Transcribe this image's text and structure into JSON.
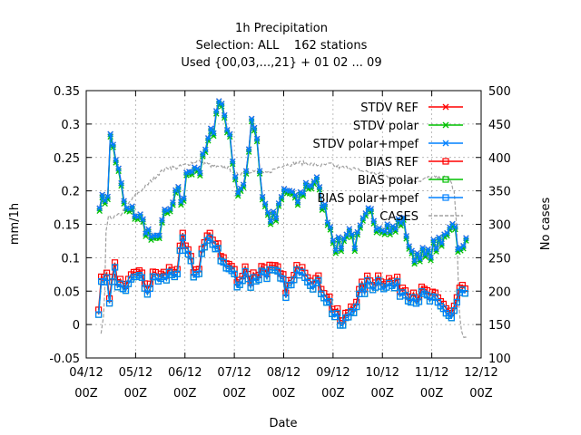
{
  "chart_data": {
    "type": "line",
    "title": [
      "1h Precipitation",
      "Selection: ALL    162 stations",
      "Used {00,03,...,21} + 01 02 ... 09"
    ],
    "xlabel": "Date",
    "ylabel": "mm/1h",
    "y2label": "No cases",
    "ylim": [
      -0.05,
      0.35
    ],
    "y2lim": [
      100,
      500
    ],
    "xlim": [
      0,
      8
    ],
    "yticks": [
      "-0.05",
      "0",
      "0.05",
      "0.1",
      "0.15",
      "0.2",
      "0.25",
      "0.3",
      "0.35"
    ],
    "y2ticks": [
      "100",
      "150",
      "200",
      "250",
      "300",
      "350",
      "400",
      "450",
      "500"
    ],
    "xticks": [
      {
        "date": "04/12",
        "hour": "00Z"
      },
      {
        "date": "05/12",
        "hour": "00Z"
      },
      {
        "date": "06/12",
        "hour": "00Z"
      },
      {
        "date": "07/12",
        "hour": "00Z"
      },
      {
        "date": "08/12",
        "hour": "00Z"
      },
      {
        "date": "09/12",
        "hour": "00Z"
      },
      {
        "date": "10/12",
        "hour": "00Z"
      },
      {
        "date": "11/12",
        "hour": "00Z"
      },
      {
        "date": "12/12",
        "hour": "00Z"
      }
    ],
    "grid": true,
    "legend": "top-right",
    "series": [
      {
        "name": "STDV REF",
        "color": "#ff0000",
        "marker": "x"
      },
      {
        "name": "STDV polar",
        "color": "#00c000",
        "marker": "x"
      },
      {
        "name": "STDV polar+mpef",
        "color": "#0080ff",
        "marker": "x"
      },
      {
        "name": "BIAS REF",
        "color": "#ff0000",
        "marker": "square"
      },
      {
        "name": "BIAS polar",
        "color": "#00c000",
        "marker": "square"
      },
      {
        "name": "BIAS polar+mpef",
        "color": "#0080ff",
        "marker": "square"
      },
      {
        "name": "CASES",
        "color": "#a0a0a0",
        "marker": "none"
      }
    ],
    "stdv_keypoints": [
      [
        0.27,
        0.185
      ],
      [
        0.35,
        0.185
      ],
      [
        0.45,
        0.2
      ],
      [
        0.5,
        0.3
      ],
      [
        0.55,
        0.265
      ],
      [
        0.6,
        0.25
      ],
      [
        0.7,
        0.21
      ],
      [
        0.8,
        0.17
      ],
      [
        0.95,
        0.17
      ],
      [
        1.1,
        0.16
      ],
      [
        1.25,
        0.14
      ],
      [
        1.4,
        0.12
      ],
      [
        1.55,
        0.16
      ],
      [
        1.7,
        0.17
      ],
      [
        1.85,
        0.2
      ],
      [
        1.95,
        0.18
      ],
      [
        2.05,
        0.23
      ],
      [
        2.2,
        0.24
      ],
      [
        2.3,
        0.23
      ],
      [
        2.45,
        0.27
      ],
      [
        2.6,
        0.3
      ],
      [
        2.65,
        0.335
      ],
      [
        2.75,
        0.33
      ],
      [
        2.85,
        0.3
      ],
      [
        3.0,
        0.24
      ],
      [
        3.05,
        0.2
      ],
      [
        3.2,
        0.2
      ],
      [
        3.35,
        0.31
      ],
      [
        3.45,
        0.29
      ],
      [
        3.55,
        0.2
      ],
      [
        3.7,
        0.16
      ],
      [
        3.85,
        0.16
      ],
      [
        4.0,
        0.2
      ],
      [
        4.15,
        0.2
      ],
      [
        4.25,
        0.18
      ],
      [
        4.45,
        0.21
      ],
      [
        4.55,
        0.21
      ],
      [
        4.65,
        0.22
      ],
      [
        4.75,
        0.19
      ],
      [
        4.9,
        0.16
      ],
      [
        5.05,
        0.12
      ],
      [
        5.2,
        0.12
      ],
      [
        5.3,
        0.15
      ],
      [
        5.45,
        0.12
      ],
      [
        5.6,
        0.15
      ],
      [
        5.75,
        0.17
      ],
      [
        5.9,
        0.15
      ],
      [
        6.05,
        0.15
      ],
      [
        6.25,
        0.14
      ],
      [
        6.35,
        0.16
      ],
      [
        6.45,
        0.15
      ],
      [
        6.6,
        0.1
      ],
      [
        6.75,
        0.11
      ],
      [
        6.9,
        0.1
      ],
      [
        7.05,
        0.12
      ],
      [
        7.2,
        0.12
      ],
      [
        7.35,
        0.15
      ],
      [
        7.45,
        0.16
      ],
      [
        7.5,
        0.13
      ],
      [
        7.6,
        0.105
      ],
      [
        7.72,
        0.13
      ]
    ],
    "bias_keypoints": [
      [
        0.25,
        0.015
      ],
      [
        0.3,
        0.075
      ],
      [
        0.4,
        0.07
      ],
      [
        0.45,
        0.04
      ],
      [
        0.5,
        0.04
      ],
      [
        0.55,
        0.08
      ],
      [
        0.6,
        0.075
      ],
      [
        0.7,
        0.05
      ],
      [
        0.8,
        0.04
      ],
      [
        0.9,
        0.06
      ],
      [
        1.0,
        0.08
      ],
      [
        1.1,
        0.065
      ],
      [
        1.25,
        0.05
      ],
      [
        1.4,
        0.07
      ],
      [
        1.55,
        0.065
      ],
      [
        1.7,
        0.075
      ],
      [
        1.85,
        0.08
      ],
      [
        1.95,
        0.12
      ],
      [
        2.05,
        0.1
      ],
      [
        2.15,
        0.08
      ],
      [
        2.25,
        0.07
      ],
      [
        2.35,
        0.11
      ],
      [
        2.45,
        0.12
      ],
      [
        2.55,
        0.12
      ],
      [
        2.65,
        0.12
      ],
      [
        2.8,
        0.085
      ],
      [
        2.95,
        0.08
      ],
      [
        3.1,
        0.05
      ],
      [
        3.2,
        0.09
      ],
      [
        3.3,
        0.06
      ],
      [
        3.45,
        0.07
      ],
      [
        3.6,
        0.08
      ],
      [
        3.75,
        0.075
      ],
      [
        3.9,
        0.07
      ],
      [
        4.05,
        0.05
      ],
      [
        4.2,
        0.06
      ],
      [
        4.35,
        0.09
      ],
      [
        4.5,
        0.07
      ],
      [
        4.65,
        0.06
      ],
      [
        4.8,
        0.05
      ],
      [
        4.9,
        0.035
      ],
      [
        5.05,
        0.01
      ],
      [
        5.2,
        -0.005
      ],
      [
        5.35,
        0.02
      ],
      [
        5.5,
        0.035
      ],
      [
        5.65,
        0.055
      ],
      [
        5.8,
        0.06
      ],
      [
        5.95,
        0.065
      ],
      [
        6.1,
        0.06
      ],
      [
        6.25,
        0.055
      ],
      [
        6.4,
        0.05
      ],
      [
        6.55,
        0.045
      ],
      [
        6.7,
        0.04
      ],
      [
        6.85,
        0.04
      ],
      [
        7.0,
        0.035
      ],
      [
        7.15,
        0.025
      ],
      [
        7.3,
        0.02
      ],
      [
        7.4,
        0.01
      ],
      [
        7.5,
        0.03
      ],
      [
        7.6,
        0.05
      ],
      [
        7.72,
        0.04
      ]
    ],
    "cases_keypoints": [
      [
        0.3,
        135
      ],
      [
        0.35,
        160
      ],
      [
        0.38,
        205
      ],
      [
        0.4,
        290
      ],
      [
        0.45,
        310
      ],
      [
        0.55,
        310
      ],
      [
        0.7,
        315
      ],
      [
        0.85,
        330
      ],
      [
        0.95,
        340
      ],
      [
        1.1,
        350
      ],
      [
        1.25,
        360
      ],
      [
        1.45,
        375
      ],
      [
        1.65,
        385
      ],
      [
        1.85,
        385
      ],
      [
        2.05,
        390
      ],
      [
        2.25,
        395
      ],
      [
        2.45,
        390
      ],
      [
        2.65,
        385
      ],
      [
        2.85,
        385
      ],
      [
        3.05,
        375
      ],
      [
        3.2,
        378
      ],
      [
        3.35,
        380
      ],
      [
        3.45,
        378
      ],
      [
        3.6,
        375
      ],
      [
        3.75,
        380
      ],
      [
        3.95,
        388
      ],
      [
        4.15,
        390
      ],
      [
        4.35,
        392
      ],
      [
        4.55,
        390
      ],
      [
        4.75,
        388
      ],
      [
        4.95,
        390
      ],
      [
        5.15,
        385
      ],
      [
        5.35,
        385
      ],
      [
        5.55,
        380
      ],
      [
        5.75,
        378
      ],
      [
        5.95,
        375
      ],
      [
        6.15,
        370
      ],
      [
        6.35,
        368
      ],
      [
        6.55,
        365
      ],
      [
        6.75,
        365
      ],
      [
        6.95,
        370
      ],
      [
        7.15,
        370
      ],
      [
        7.35,
        370
      ],
      [
        7.45,
        350
      ],
      [
        7.5,
        300
      ],
      [
        7.55,
        180
      ],
      [
        7.6,
        140
      ],
      [
        7.65,
        130
      ],
      [
        7.72,
        130
      ]
    ],
    "stdv_offsets": [
      0.0,
      -0.004,
      0.0
    ],
    "bias_offsets": [
      0.007,
      0.0,
      0.0
    ]
  }
}
